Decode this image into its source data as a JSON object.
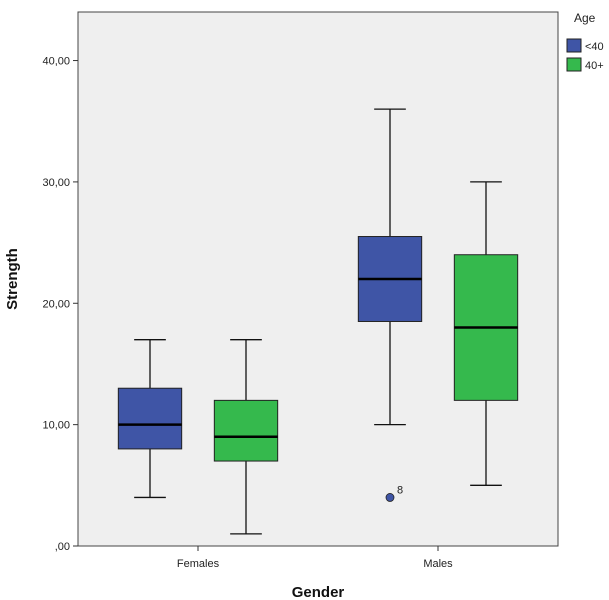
{
  "chart_data": {
    "type": "boxplot",
    "xlabel": "Gender",
    "ylabel": "Strength",
    "categories": [
      "Females",
      "Males"
    ],
    "ylim": [
      0,
      44
    ],
    "yticks": [
      0,
      10,
      20,
      30,
      40
    ],
    "ytick_labels": [
      ",00",
      "10,00",
      "20,00",
      "30,00",
      "40,00"
    ],
    "legend": {
      "title": "Age",
      "position": "top-right",
      "entries": [
        "<40",
        "40+"
      ]
    },
    "series": [
      {
        "name": "<40",
        "color": "#3f55a6",
        "boxes": [
          {
            "category": "Females",
            "whisker_low": 4,
            "q1": 8,
            "median": 10,
            "q3": 13,
            "whisker_high": 17,
            "outliers": []
          },
          {
            "category": "Males",
            "whisker_low": 10,
            "q1": 18.5,
            "median": 22,
            "q3": 25.5,
            "whisker_high": 36,
            "outliers": [
              {
                "value": 4,
                "label": "8"
              }
            ]
          }
        ]
      },
      {
        "name": "40+",
        "color": "#35b94d",
        "boxes": [
          {
            "category": "Females",
            "whisker_low": 1,
            "q1": 7,
            "median": 9,
            "q3": 12,
            "whisker_high": 17,
            "outliers": []
          },
          {
            "category": "Males",
            "whisker_low": 5,
            "q1": 12,
            "median": 18,
            "q3": 24,
            "whisker_high": 30,
            "outliers": []
          }
        ]
      }
    ],
    "grid": false,
    "plot_background": "#efefef"
  }
}
